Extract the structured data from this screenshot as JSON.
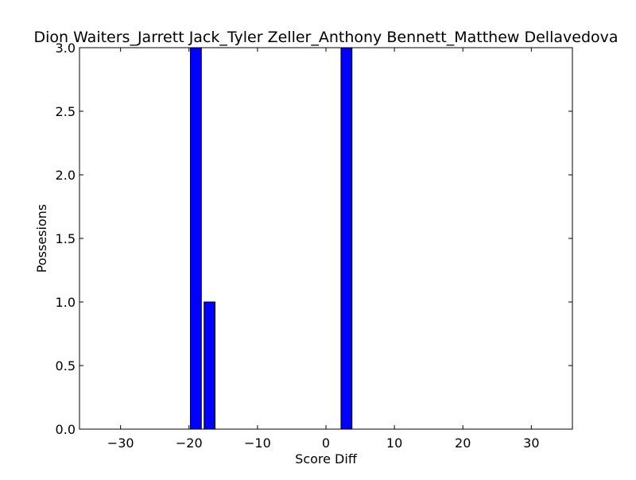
{
  "chart_data": {
    "type": "bar",
    "title": "Dion Waiters_Jarrett Jack_Tyler Zeller_Anthony Bennett_Matthew Dellavedova",
    "xlabel": "Score Diff",
    "ylabel": "Possesions",
    "xlim": [
      -36,
      36
    ],
    "ylim": [
      0,
      3
    ],
    "x_ticks": [
      -30,
      -20,
      -10,
      0,
      10,
      20,
      30
    ],
    "x_tick_labels": [
      "−30",
      "−20",
      "−10",
      "0",
      "10",
      "20",
      "30"
    ],
    "y_ticks": [
      0,
      0.5,
      1,
      1.5,
      2,
      2.5,
      3
    ],
    "y_tick_labels": [
      "0.0",
      "0.5",
      "1.0",
      "1.5",
      "2.0",
      "2.5",
      "3.0"
    ],
    "bar_width": 1.6,
    "bars": [
      {
        "x": -19,
        "value": 3
      },
      {
        "x": -17,
        "value": 1
      },
      {
        "x": 3,
        "value": 3
      }
    ],
    "bar_color": "#0000ff",
    "edge_color": "#000000",
    "grid": false,
    "legend": "none"
  }
}
